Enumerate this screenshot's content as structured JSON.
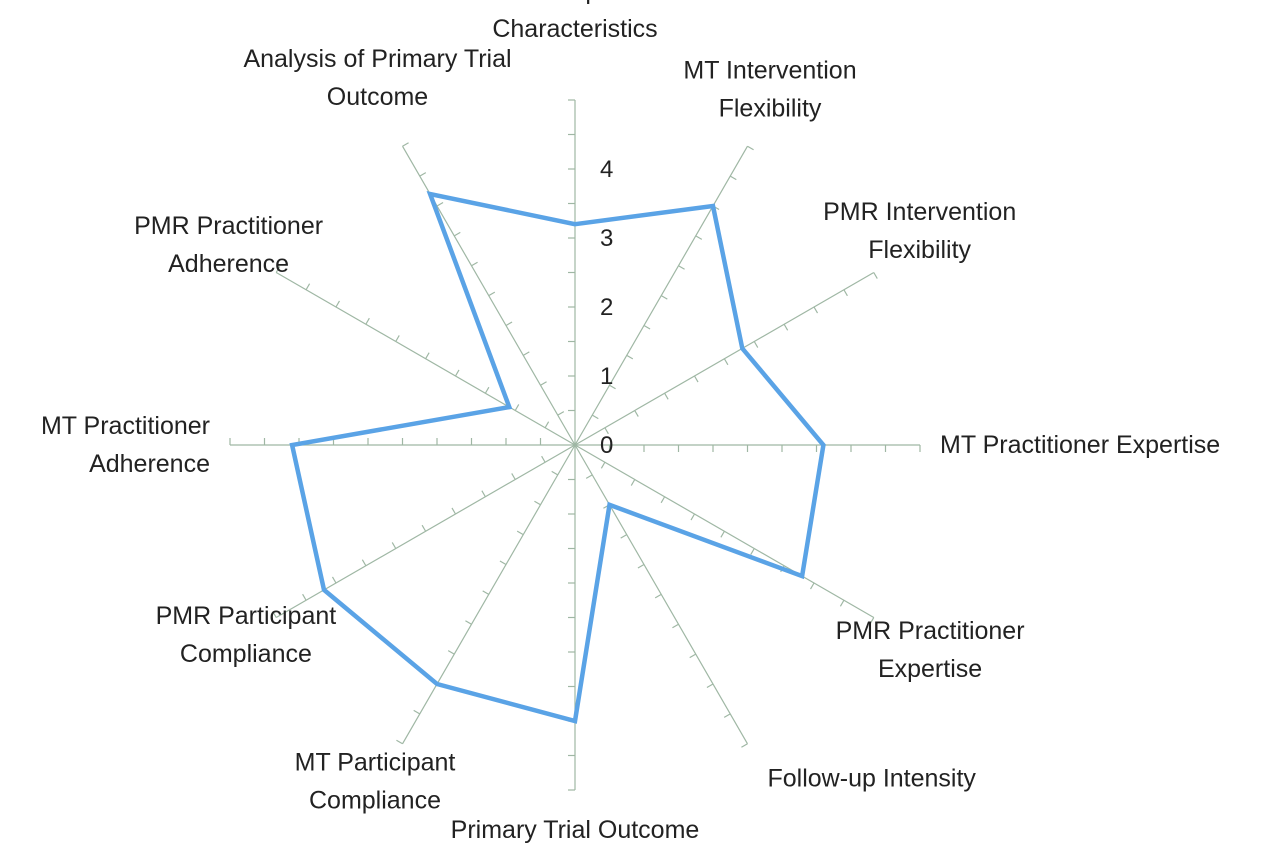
{
  "chart_data": {
    "type": "radar",
    "categories": [
      "Participant Characteristics",
      "MT Intervention Flexibility",
      "PMR Intervention Flexibility",
      "MT Practitioner Expertise",
      "PMR Practitioner Expertise",
      "Follow-up Intensity",
      "Primary Trial Outcome",
      "MT Participant Compliance",
      "PMR Participant Compliance",
      "MT Practitioner Adherence",
      "PMR Practitioner Adherence",
      "Analysis of Primary Trial Outcome"
    ],
    "category_lines": [
      [
        "Participant",
        "Characteristics"
      ],
      [
        "MT Intervention",
        "Flexibility"
      ],
      [
        "PMR Intervention",
        "Flexibility"
      ],
      [
        "MT Practitioner Expertise"
      ],
      [
        "PMR Practitioner",
        "Expertise"
      ],
      [
        "Follow-up Intensity"
      ],
      [
        "Primary Trial Outcome"
      ],
      [
        "MT Participant",
        "Compliance"
      ],
      [
        "PMR Participant",
        "Compliance"
      ],
      [
        "MT Practitioner",
        "Adherence"
      ],
      [
        "PMR Practitioner",
        "Adherence"
      ],
      [
        "Analysis of Primary Trial",
        "Outcome"
      ]
    ],
    "series": [
      {
        "values": [
          3.2,
          4.0,
          2.8,
          3.6,
          3.8,
          1.0,
          4.0,
          4.0,
          4.2,
          4.1,
          1.1,
          4.2
        ],
        "color": "#5aa3e6"
      }
    ],
    "radial_ticks": [
      "0",
      "1",
      "2",
      "3",
      "4"
    ],
    "ylim": [
      0,
      5
    ],
    "grid": false,
    "legend": "none"
  }
}
